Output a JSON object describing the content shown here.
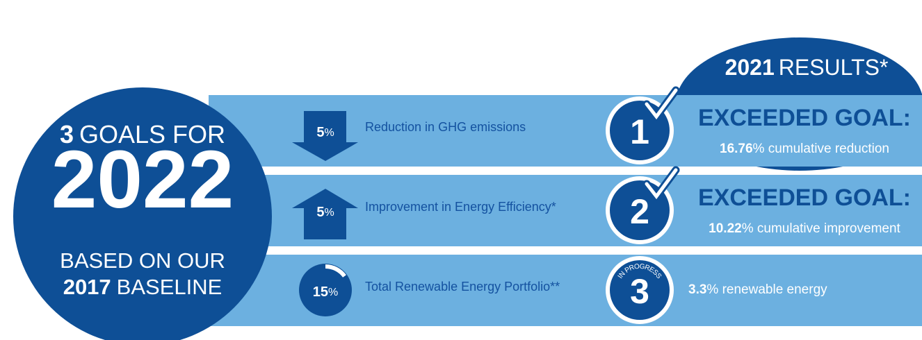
{
  "header": {
    "number": "3",
    "text": "GOALS FOR",
    "year": "2022",
    "line1": "BASED ON OUR",
    "baseline_year": "2017",
    "baseline_text": "BASELINE"
  },
  "results_header": {
    "year": "2021",
    "text": "RESULTS*"
  },
  "goals": [
    {
      "value": 5,
      "unit": "%",
      "label": "Reduction in GHG emissions",
      "number": "1",
      "status": "EXCEEDED GOAL:",
      "result": "16.76",
      "result_text": "% cumulative reduction"
    },
    {
      "value": 5,
      "unit": "%",
      "label": "Improvement in Energy Efficiency*",
      "number": "2",
      "status": "EXCEEDED GOAL:",
      "result": "10.22",
      "result_text": "% cumulative improvement"
    },
    {
      "value": 15,
      "unit": "%",
      "label": "Total Renewable Energy Portfolio**",
      "number": "3",
      "status": "IN PROGRESS",
      "result": "3.3",
      "result_text": "% renewable energy"
    }
  ]
}
